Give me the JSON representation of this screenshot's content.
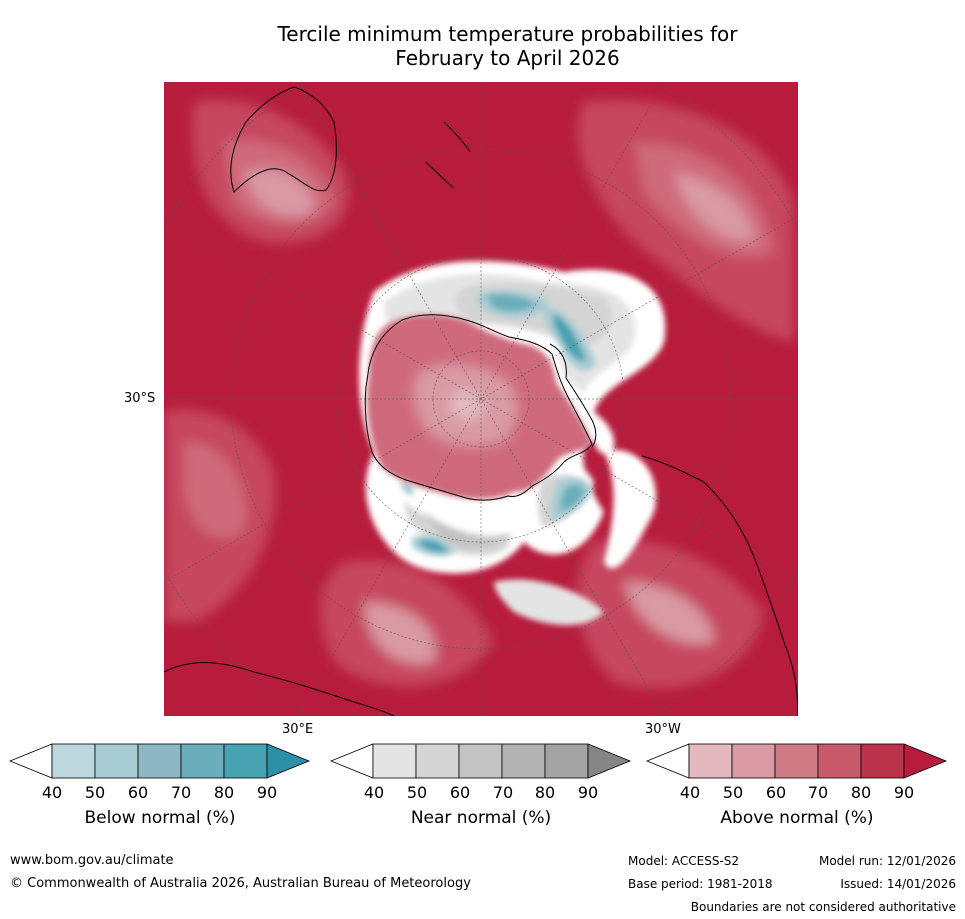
{
  "title": {
    "line1": "Tercile minimum temperature probabilities for",
    "line2": "February to April 2026"
  },
  "map": {
    "projection": "south-polar-stereographic",
    "labels": {
      "lat_30s": "30°S",
      "lon_30e": "30°E",
      "lon_30w": "30°W"
    },
    "colors": {
      "dominant_above": "#b71c3c",
      "above_80": "#c6475e",
      "above_70": "#cf6b7c",
      "above_60": "#d99aa4",
      "above_50": "#e3b9bf",
      "near_40": "#ffffff",
      "near_50": "#e4e4e4",
      "near_60": "#d4d4d4",
      "near_70": "#c3c3c3",
      "near_80": "#b3b3b3",
      "below_70": "#6aaebb",
      "below_80": "#47a2b2",
      "below_90": "#2d90a6",
      "coast": "#000000",
      "grid": "#555555"
    }
  },
  "colorbars": [
    {
      "name": "below-normal",
      "label": "Below normal (%)",
      "ticks": [
        "40",
        "50",
        "60",
        "70",
        "80",
        "90"
      ],
      "colors": [
        "#ffffff",
        "#bcd8de",
        "#a7cbd2",
        "#8db8c3",
        "#6aaebb",
        "#47a2b2",
        "#2d90a6"
      ]
    },
    {
      "name": "near-normal",
      "label": "Near normal (%)",
      "ticks": [
        "40",
        "50",
        "60",
        "70",
        "80",
        "90"
      ],
      "colors": [
        "#ffffff",
        "#e4e4e4",
        "#d4d4d4",
        "#c3c3c3",
        "#b3b3b3",
        "#a3a3a3",
        "#858585"
      ]
    },
    {
      "name": "above-normal",
      "label": "Above normal (%)",
      "ticks": [
        "40",
        "50",
        "60",
        "70",
        "80",
        "90"
      ],
      "colors": [
        "#ffffff",
        "#e3b9bf",
        "#d99aa4",
        "#cf7b86",
        "#c65a6b",
        "#b9344b",
        "#b71c3c"
      ]
    }
  ],
  "footer": {
    "website": "www.bom.gov.au/climate",
    "copyright": "© Commonwealth of Australia 2026, Australian Bureau of Meteorology",
    "model": "Model: ACCESS-S2",
    "model_run": "Model run: 12/01/2026",
    "base_period": "Base period: 1981-2018",
    "issued": "Issued: 14/01/2026",
    "disclaimer": "Boundaries are not considered authoritative"
  }
}
